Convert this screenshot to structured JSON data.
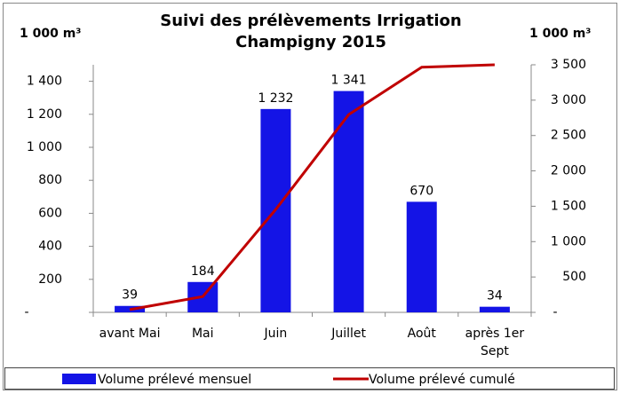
{
  "chart_data": {
    "type": "bar",
    "title": "Suivi des prélèvements Irrigation Champigny 2015",
    "y_label": "1 000 m³",
    "y2_label": "1 000 m³",
    "categories": [
      "avant Mai",
      "Mai",
      "Juin",
      "Juillet",
      "Août",
      "après 1er Sept"
    ],
    "series": [
      {
        "name": "Volume prélevé mensuel",
        "type": "bar",
        "color": "#1414e6",
        "axis": "y",
        "values": [
          39,
          184,
          1232,
          1341,
          670,
          34
        ],
        "value_labels": [
          "39",
          "184",
          "1 232",
          "1 341",
          "670",
          "34"
        ]
      },
      {
        "name": "Volume prélevé cumulé",
        "type": "line",
        "color": "#c00000",
        "axis": "y2",
        "values": [
          39,
          223,
          1455,
          2796,
          3466,
          3500
        ]
      }
    ],
    "ylim": [
      0,
      1500
    ],
    "yticks": [
      {
        "value": 0,
        "label": "-"
      },
      200,
      400,
      600,
      800,
      {
        "value": 1000,
        "label": "1 000"
      },
      {
        "value": 1200,
        "label": "1 200"
      },
      {
        "value": 1400,
        "label": "1 400"
      }
    ],
    "y2lim": [
      0,
      3500
    ],
    "y2ticks": [
      {
        "value": 0,
        "label": "-"
      },
      500,
      {
        "value": 1000,
        "label": "1 000"
      },
      {
        "value": 1500,
        "label": "1 500"
      },
      {
        "value": 2000,
        "label": "2 000"
      },
      {
        "value": 2500,
        "label": "2 500"
      },
      {
        "value": 3000,
        "label": "3 000"
      },
      {
        "value": 3500,
        "label": "3 500"
      }
    ],
    "legend": "bottom"
  }
}
